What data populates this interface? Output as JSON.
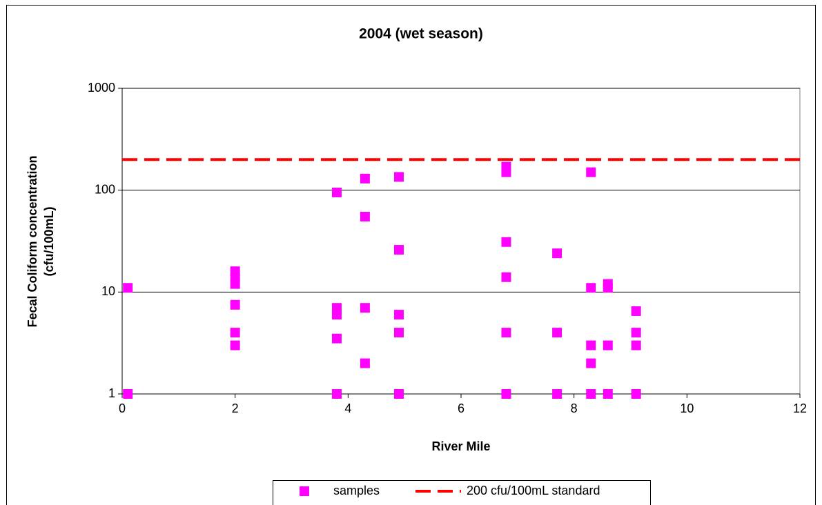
{
  "chart_data": {
    "type": "scatter",
    "title": "2004 (wet season)",
    "xlabel": "River Mile",
    "ylabel_lines": [
      "Fecal Coliform concentration",
      "(cfu/100mL)"
    ],
    "xlim": [
      0,
      12
    ],
    "xticks": [
      0,
      2,
      4,
      6,
      8,
      10,
      12
    ],
    "ylim": [
      1,
      1000
    ],
    "yticks": [
      1,
      10,
      100,
      1000
    ],
    "ylog": true,
    "grid": true,
    "legend": "bottom",
    "series": [
      {
        "name": "samples",
        "color": "#ff00ff",
        "marker": "square",
        "x": [
          0.1,
          0.1,
          2,
          2,
          2,
          2,
          2,
          2,
          3.8,
          3.8,
          3.8,
          3.8,
          3.8,
          4.3,
          4.3,
          4.3,
          4.3,
          4.9,
          4.9,
          4.9,
          4.9,
          4.9,
          6.8,
          6.8,
          6.8,
          6.8,
          6.8,
          6.8,
          7.7,
          7.7,
          7.7,
          8.3,
          8.3,
          8.3,
          8.3,
          8.3,
          8.6,
          8.6,
          8.6,
          8.6,
          9.1,
          9.1,
          9.1,
          9.1
        ],
        "values": [
          11,
          1,
          16,
          14,
          12,
          7.5,
          4,
          3,
          95,
          7,
          6,
          3.5,
          1,
          130,
          55,
          7,
          2,
          135,
          26,
          6,
          4,
          1,
          170,
          150,
          31,
          14,
          4,
          1,
          24,
          4,
          1,
          150,
          11,
          3,
          2,
          1,
          12,
          11,
          3,
          1,
          6.5,
          4,
          3,
          1
        ]
      }
    ],
    "reference_line": {
      "name": "200 cfu/100mL standard",
      "value": 200,
      "color": "#ff0000"
    }
  }
}
